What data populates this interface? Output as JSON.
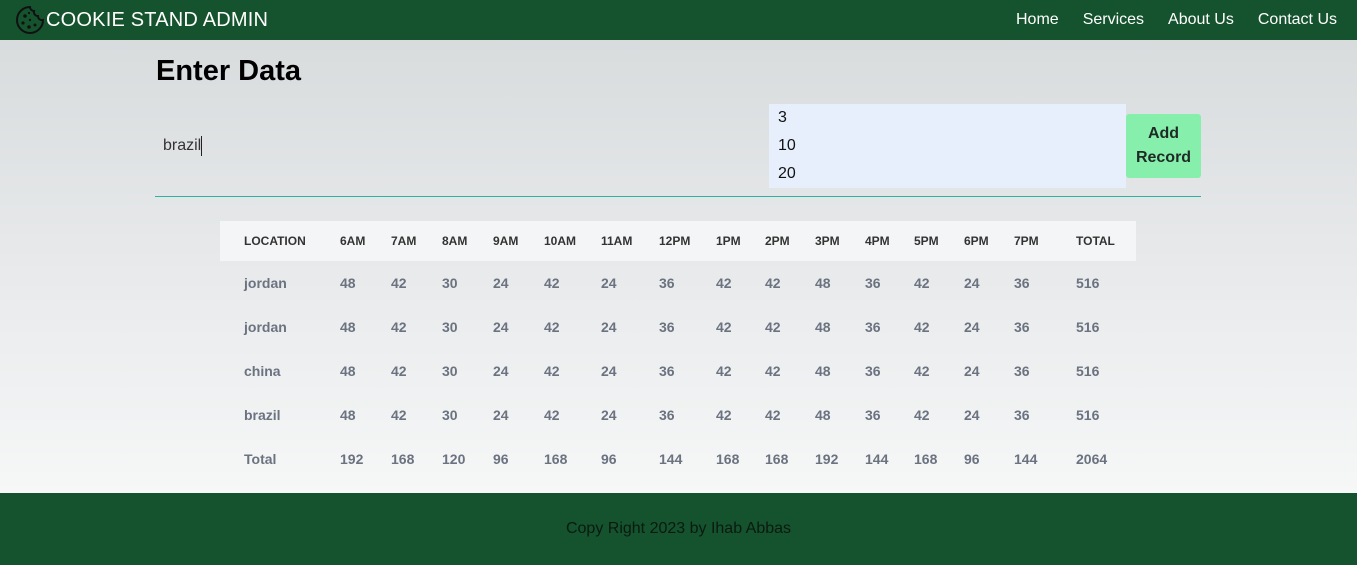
{
  "header": {
    "title": "COOKIE STAND ADMIN",
    "logo_icon": "cookie-icon",
    "nav": [
      "Home",
      "Services",
      "About Us",
      "Contact Us"
    ]
  },
  "form": {
    "title": "Enter Data",
    "location_value": "brazil",
    "min_value": "3",
    "max_value": "10",
    "avg_value": "20",
    "button_label": "Add Record"
  },
  "table": {
    "headers": [
      "LOCATION",
      "6AM",
      "7AM",
      "8AM",
      "9AM",
      "10AM",
      "11AM",
      "12PM",
      "1PM",
      "2PM",
      "3PM",
      "4PM",
      "5PM",
      "6PM",
      "7PM",
      "TOTAL"
    ],
    "rows": [
      [
        "jordan",
        "48",
        "42",
        "30",
        "24",
        "42",
        "24",
        "36",
        "42",
        "42",
        "48",
        "36",
        "42",
        "24",
        "36",
        "516"
      ],
      [
        "jordan",
        "48",
        "42",
        "30",
        "24",
        "42",
        "24",
        "36",
        "42",
        "42",
        "48",
        "36",
        "42",
        "24",
        "36",
        "516"
      ],
      [
        "china",
        "48",
        "42",
        "30",
        "24",
        "42",
        "24",
        "36",
        "42",
        "42",
        "48",
        "36",
        "42",
        "24",
        "36",
        "516"
      ],
      [
        "brazil",
        "48",
        "42",
        "30",
        "24",
        "42",
        "24",
        "36",
        "42",
        "42",
        "48",
        "36",
        "42",
        "24",
        "36",
        "516"
      ]
    ],
    "totals": [
      "Total",
      "192",
      "168",
      "120",
      "96",
      "168",
      "96",
      "144",
      "168",
      "168",
      "192",
      "144",
      "168",
      "96",
      "144",
      "2064"
    ]
  },
  "footer": {
    "text": "Copy Right 2023 by Ihab Abbas"
  },
  "colors": {
    "header_bg": "#14532d",
    "button_bg": "#86efac",
    "divider": "#2bb5a0",
    "number_inputs_bg": "#e8effc"
  }
}
